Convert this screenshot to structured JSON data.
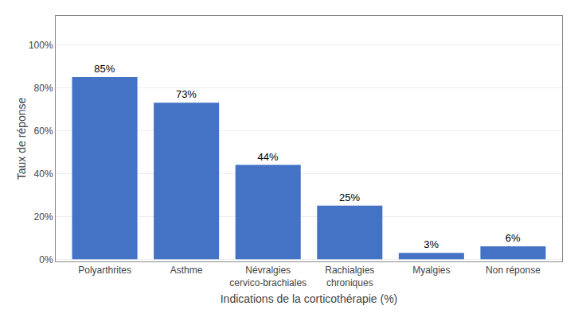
{
  "chart_data": {
    "type": "bar",
    "categories": [
      "Polyarthrites",
      "Asthme",
      "Névralgies\ncervico-brachiales",
      "Rachialgies\nchroniques",
      "Myalgies",
      "Non réponse"
    ],
    "values": [
      85,
      73,
      44,
      25,
      3,
      6
    ],
    "value_labels": [
      "85%",
      "73%",
      "44%",
      "25%",
      "3%",
      "6%"
    ],
    "data_labels": true,
    "color": "#4472C4",
    "xlabel": "Indications de la corticothérapie (%)",
    "ylabel": "Taux de réponse",
    "ylim": [
      -1,
      113.5
    ],
    "yticks": [
      {
        "value": 0,
        "label": "0%"
      },
      {
        "value": 20,
        "label": "20%"
      },
      {
        "value": 40,
        "label": "40%"
      },
      {
        "value": 60,
        "label": "60%"
      },
      {
        "value": 80,
        "label": "80%"
      },
      {
        "value": 100,
        "label": "100%"
      }
    ],
    "grid": true
  }
}
